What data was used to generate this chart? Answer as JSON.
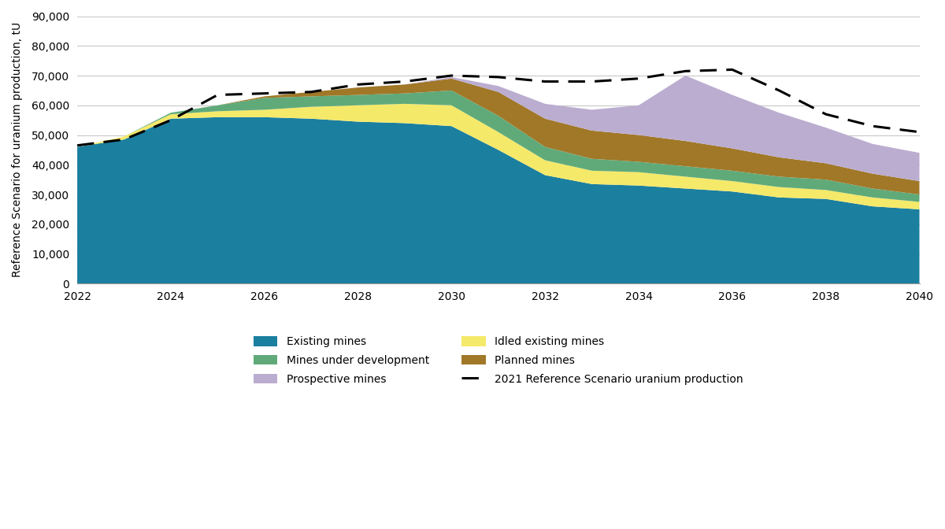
{
  "years": [
    2022,
    2023,
    2024,
    2025,
    2026,
    2027,
    2028,
    2029,
    2030,
    2031,
    2032,
    2033,
    2034,
    2035,
    2036,
    2037,
    2038,
    2039,
    2040
  ],
  "existing_mines": [
    46000,
    48500,
    55500,
    56000,
    56000,
    55500,
    54500,
    54000,
    53000,
    45000,
    36500,
    33500,
    33000,
    32000,
    31000,
    29000,
    28500,
    26000,
    25000
  ],
  "idled_existing_mines": [
    0,
    1000,
    1500,
    2000,
    2500,
    4000,
    5500,
    6500,
    7000,
    6000,
    5000,
    4500,
    4500,
    4000,
    3500,
    3500,
    3000,
    3000,
    2500
  ],
  "mines_under_dev": [
    0,
    0,
    500,
    2000,
    4000,
    3500,
    3500,
    3500,
    5000,
    5500,
    4500,
    4000,
    3500,
    3500,
    3500,
    3500,
    3500,
    3000,
    2500
  ],
  "planned_mines": [
    0,
    0,
    0,
    0,
    500,
    1500,
    2500,
    3000,
    4000,
    8000,
    9500,
    9500,
    9000,
    8500,
    7500,
    6500,
    5500,
    5000,
    4500
  ],
  "prospective_mines": [
    0,
    0,
    0,
    0,
    0,
    0,
    0,
    0,
    500,
    2000,
    5000,
    7000,
    10000,
    22000,
    18000,
    15000,
    12000,
    10000,
    9500
  ],
  "reference_scenario": [
    46500,
    48500,
    55000,
    63500,
    64000,
    64500,
    67000,
    68000,
    70000,
    69500,
    68000,
    68000,
    69000,
    71500,
    72000,
    65000,
    57000,
    53000,
    51000
  ],
  "colors": {
    "existing_mines": "#1b7fa0",
    "idled_existing_mines": "#f5e96a",
    "mines_under_dev": "#60aa7a",
    "planned_mines": "#a07828",
    "prospective_mines": "#bbadd0"
  },
  "ylabel": "Reference Scenario for uranium production, tU",
  "ylim": [
    0,
    90000
  ],
  "yticks": [
    0,
    10000,
    20000,
    30000,
    40000,
    50000,
    60000,
    70000,
    80000,
    90000
  ],
  "xlim": [
    2022,
    2040
  ],
  "xticks": [
    2022,
    2024,
    2026,
    2028,
    2030,
    2032,
    2034,
    2036,
    2038,
    2040
  ],
  "legend_labels": [
    "Existing mines",
    "Idled existing mines",
    "Mines under development",
    "Planned mines",
    "Prospective mines",
    "2021 Reference Scenario uranium production"
  ],
  "legend_order": [
    0,
    2,
    4,
    1,
    3,
    5
  ],
  "background_color": "#ffffff",
  "grid_color": "#c8c8c8"
}
